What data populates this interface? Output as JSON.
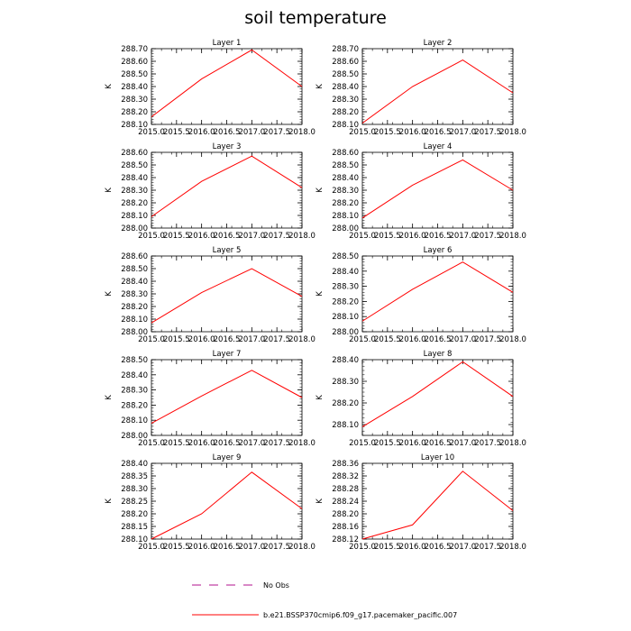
{
  "chart_data": {
    "type": "line",
    "title": "soil temperature",
    "ylabel": "K",
    "xlim": [
      2015.0,
      2018.0
    ],
    "xticks": [
      "2015.0",
      "2015.5",
      "2016.0",
      "2016.5",
      "2017.0",
      "2017.5",
      "2018.0"
    ],
    "x": [
      2015.0,
      2016.0,
      2017.0,
      2018.0
    ],
    "line_color": "#ff0000",
    "panels": [
      {
        "title": "Layer 1",
        "ylim": [
          288.1,
          288.7
        ],
        "yticks": [
          "288.10",
          "288.20",
          "288.30",
          "288.40",
          "288.50",
          "288.60",
          "288.70"
        ],
        "values": [
          288.16,
          288.46,
          288.69,
          288.4
        ]
      },
      {
        "title": "Layer 2",
        "ylim": [
          288.1,
          288.7
        ],
        "yticks": [
          "288.10",
          "288.20",
          "288.30",
          "288.40",
          "288.50",
          "288.60",
          "288.70"
        ],
        "values": [
          288.11,
          288.4,
          288.61,
          288.35
        ]
      },
      {
        "title": "Layer 3",
        "ylim": [
          288.0,
          288.6
        ],
        "yticks": [
          "288.00",
          "288.10",
          "288.20",
          "288.30",
          "288.40",
          "288.50",
          "288.60"
        ],
        "values": [
          288.09,
          288.37,
          288.57,
          288.32
        ]
      },
      {
        "title": "Layer 4",
        "ylim": [
          288.0,
          288.6
        ],
        "yticks": [
          "288.00",
          "288.10",
          "288.20",
          "288.30",
          "288.40",
          "288.50",
          "288.60"
        ],
        "values": [
          288.08,
          288.34,
          288.54,
          288.3
        ]
      },
      {
        "title": "Layer 5",
        "ylim": [
          288.0,
          288.6
        ],
        "yticks": [
          "288.00",
          "288.10",
          "288.20",
          "288.30",
          "288.40",
          "288.50",
          "288.60"
        ],
        "values": [
          288.07,
          288.31,
          288.5,
          288.28
        ]
      },
      {
        "title": "Layer 6",
        "ylim": [
          288.0,
          288.5
        ],
        "yticks": [
          "288.00",
          "288.10",
          "288.20",
          "288.30",
          "288.40",
          "288.50"
        ],
        "values": [
          288.07,
          288.28,
          288.46,
          288.26
        ]
      },
      {
        "title": "Layer 7",
        "ylim": [
          288.0,
          288.5
        ],
        "yticks": [
          "288.00",
          "288.10",
          "288.20",
          "288.30",
          "288.40",
          "288.50"
        ],
        "values": [
          288.08,
          288.26,
          288.43,
          288.25
        ]
      },
      {
        "title": "Layer 8",
        "ylim": [
          288.05,
          288.4
        ],
        "yticks": [
          "288.10",
          "288.20",
          "288.30",
          "288.40"
        ],
        "values": [
          288.09,
          288.23,
          288.39,
          288.23
        ]
      },
      {
        "title": "Layer 9",
        "ylim": [
          288.1,
          288.4
        ],
        "yticks": [
          "288.10",
          "288.15",
          "288.20",
          "288.25",
          "288.30",
          "288.35",
          "288.40"
        ],
        "values": [
          288.1,
          288.2,
          288.365,
          288.22
        ]
      },
      {
        "title": "Layer 10",
        "ylim": [
          288.12,
          288.36
        ],
        "yticks": [
          "288.12",
          "288.16",
          "288.20",
          "288.24",
          "288.28",
          "288.32",
          "288.36"
        ],
        "values": [
          288.12,
          288.165,
          288.335,
          288.21
        ]
      }
    ],
    "legend": [
      {
        "label": "No Obs",
        "color": "#b0108c",
        "dash": true
      },
      {
        "label": "b.e21.BSSP370cmip6.f09_g17.pacemaker_pacific.007",
        "color": "#ff0000",
        "dash": false
      }
    ]
  }
}
